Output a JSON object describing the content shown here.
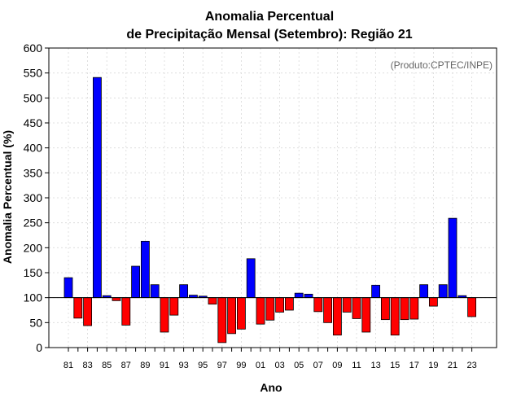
{
  "chart_data": {
    "type": "bar",
    "title_line1": "Anomalia Percentual",
    "title_line2": "de Precipitação Mensal (Setembro): Região 21",
    "xlabel": "Ano",
    "ylabel": "Anomalia Percentual (%)",
    "credit": "(Produto:CPTEC/INPE)",
    "baseline": 100,
    "ylim": [
      0,
      600
    ],
    "yticks": [
      0,
      50,
      100,
      150,
      200,
      250,
      300,
      350,
      400,
      450,
      500,
      550,
      600
    ],
    "years": [
      "81",
      "82",
      "83",
      "84",
      "85",
      "86",
      "87",
      "88",
      "89",
      "90",
      "91",
      "92",
      "93",
      "94",
      "95",
      "96",
      "97",
      "98",
      "99",
      "00",
      "01",
      "02",
      "03",
      "04",
      "05",
      "06",
      "07",
      "08",
      "09",
      "10",
      "11",
      "12",
      "13",
      "14",
      "15",
      "16",
      "17",
      "18",
      "19",
      "20",
      "21",
      "22",
      "23"
    ],
    "xtick_labels": [
      "81",
      "83",
      "85",
      "87",
      "89",
      "91",
      "93",
      "95",
      "97",
      "99",
      "01",
      "03",
      "05",
      "07",
      "09",
      "11",
      "13",
      "15",
      "17",
      "19",
      "21",
      "23"
    ],
    "values": [
      140,
      59,
      44,
      541,
      104,
      94,
      45,
      163,
      213,
      126,
      31,
      65,
      126,
      105,
      103,
      87,
      10,
      28,
      37,
      178,
      47,
      55,
      71,
      75,
      109,
      107,
      72,
      50,
      25,
      71,
      58,
      31,
      125,
      56,
      25,
      56,
      57,
      126,
      83,
      126,
      259,
      104,
      62
    ],
    "colors": {
      "above": "#0000ff",
      "below": "#ff0000",
      "edge": "#000000"
    }
  }
}
